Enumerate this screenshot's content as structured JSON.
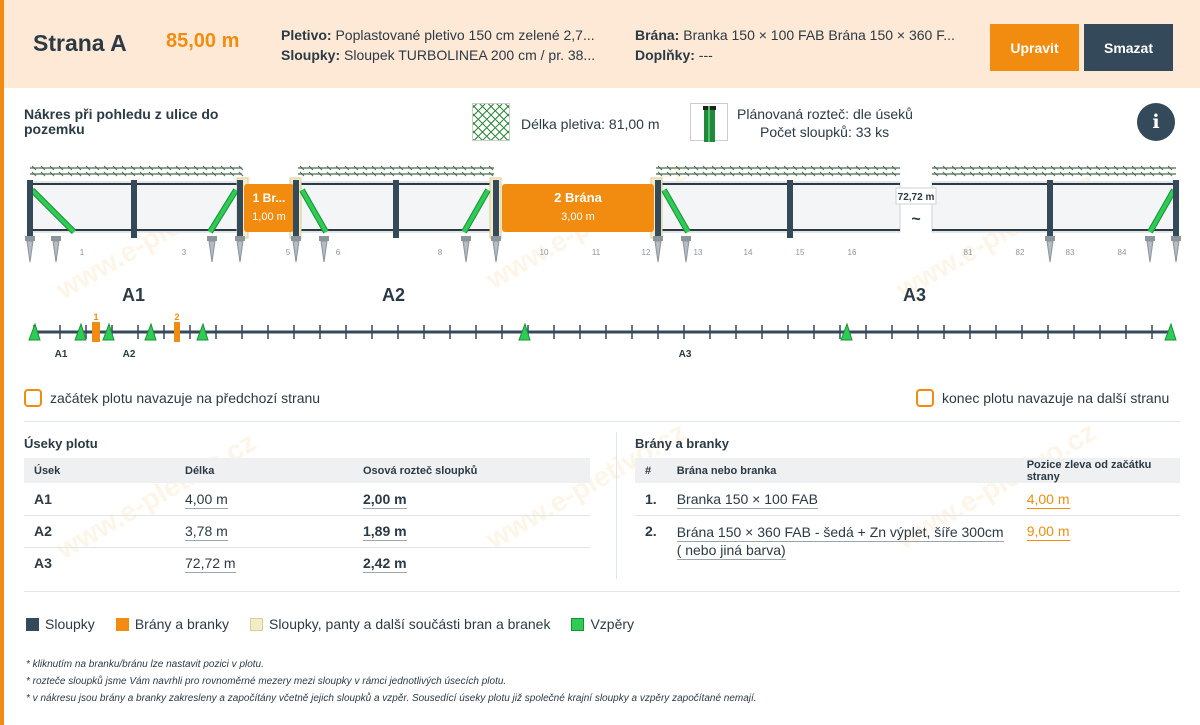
{
  "header": {
    "title": "Strana A",
    "length": "85,00 m",
    "pletivo_label": "Pletivo:",
    "pletivo_value": "Poplastované pletivo 150 cm zelené 2,7...",
    "sloupky_label": "Sloupky:",
    "sloupky_value": "Sloupek TURBOLINEA 200 cm / pr. 38...",
    "brana_label": "Brána:",
    "brana_value": "Branka 150 × 100 FAB Brána 150 × 360 F...",
    "doplnky_label": "Doplňky:",
    "doplnky_value": "---",
    "edit_label": "Upravit",
    "delete_label": "Smazat"
  },
  "drawing": {
    "title": "Nákres při pohledu z ulice do pozemku",
    "mesh_length": "Délka pletiva: 81,00 m",
    "spacing": "Plánovaná rozteč: dle úseků",
    "post_count": "Počet sloupků: 33 ks",
    "gate1_name": "1 Br...",
    "gate1_length": "1,00 m",
    "gate2_name": "2 Brána",
    "gate2_length": "3,00 m",
    "break_length": "72,72 m",
    "break_symbol": "~",
    "post_numbers": [
      "1",
      "3",
      "5",
      "6",
      "8",
      "10",
      "11",
      "12",
      "13",
      "14",
      "15",
      "16",
      "81",
      "82",
      "83",
      "84"
    ],
    "segment_labels": [
      "A1",
      "A2",
      "A3"
    ],
    "mini_gate_numbers": [
      "1",
      "2"
    ],
    "mini_segment_labels": [
      "A1",
      "A2",
      "A3"
    ]
  },
  "options": {
    "start_label": "začátek plotu navazuje na předchozí stranu",
    "end_label": "konec plotu navazuje na další stranu"
  },
  "segments_table": {
    "title": "Úseky plotu",
    "headers": [
      "Úsek",
      "Délka",
      "Osová rozteč sloupků"
    ],
    "rows": [
      {
        "name": "A1",
        "length": "4,00 m",
        "spacing": "2,00 m"
      },
      {
        "name": "A2",
        "length": "3,78 m",
        "spacing": "1,89 m"
      },
      {
        "name": "A3",
        "length": "72,72 m",
        "spacing": "2,42 m"
      }
    ]
  },
  "gates_table": {
    "title": "Brány a branky",
    "headers": [
      "#",
      "Brána nebo branka",
      "Pozice zleva od začátku strany"
    ],
    "rows": [
      {
        "num": "1.",
        "name": "Branka 150 × 100 FAB",
        "pos": "4,00 m"
      },
      {
        "num": "2.",
        "name": "Brána 150 × 360 FAB - šedá + Zn výplet, šíře 300cm ( nebo jiná barva)",
        "pos": "9,00 m"
      }
    ]
  },
  "legend": {
    "items": [
      {
        "label": "Sloupky",
        "color": "#34495a"
      },
      {
        "label": "Brány a branky",
        "color": "#f28c10"
      },
      {
        "label": "Sloupky, panty a další součásti bran a branek",
        "color": "#f3ecc7"
      },
      {
        "label": "Vzpěry",
        "color": "#2ecc55"
      }
    ]
  },
  "notes": [
    "* kliknutím na branku/bránu lze nastavit pozici v plotu.",
    "* rozteče sloupků jsme Vám navrhli pro rovnoměrné mezery mezi sloupky v rámci jednotlivých úsecích plotu.",
    "* v nákresu jsou brány a branky zakresleny a započítány včetně jejich sloupků a vzpěr. Sousedící úseky plotu již společné krajní sloupky a vzpěry započítané nemají."
  ],
  "watermark": "www.e-pletivo.cz"
}
